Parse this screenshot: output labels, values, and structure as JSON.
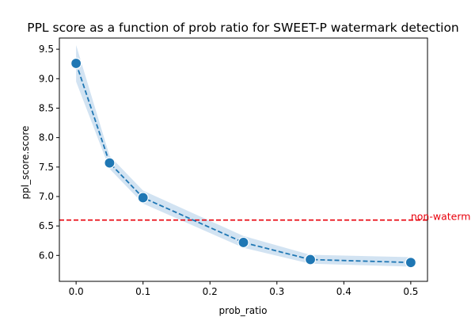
{
  "chart_data": {
    "type": "line",
    "title": "PPL score as a function of prob ratio for SWEET-P watermark detection",
    "xlabel": "prob_ratio",
    "ylabel": "ppl_score.score",
    "xlim": [
      -0.025,
      0.525
    ],
    "ylim": [
      5.56,
      9.69
    ],
    "xticks": [
      0.0,
      0.1,
      0.2,
      0.3,
      0.4,
      0.5
    ],
    "xtick_labels": [
      "0.0",
      "0.1",
      "0.2",
      "0.3",
      "0.4",
      "0.5"
    ],
    "yticks": [
      6.0,
      6.5,
      7.0,
      7.5,
      8.0,
      8.5,
      9.0,
      9.5
    ],
    "ytick_labels": [
      "6.0",
      "6.5",
      "7.0",
      "7.5",
      "8.0",
      "8.5",
      "9.0",
      "9.5"
    ],
    "grid": false,
    "series": [
      {
        "color": "#1f77b4",
        "line_style": "dashed",
        "marker": "circle",
        "band_color": "#a6c8e6",
        "points": [
          {
            "x": 0.0,
            "y": 9.26,
            "lo": 8.95,
            "hi": 9.57
          },
          {
            "x": 0.05,
            "y": 7.57,
            "lo": 7.47,
            "hi": 7.69
          },
          {
            "x": 0.1,
            "y": 6.98,
            "lo": 6.88,
            "hi": 7.1
          },
          {
            "x": 0.25,
            "y": 6.22,
            "lo": 6.13,
            "hi": 6.33
          },
          {
            "x": 0.35,
            "y": 5.93,
            "lo": 5.86,
            "hi": 6.01
          },
          {
            "x": 0.5,
            "y": 5.88,
            "lo": 5.81,
            "hi": 5.97
          }
        ]
      }
    ],
    "reference_line": {
      "y": 6.6,
      "color": "#e8000b",
      "line_style": "dashed",
      "label": "non-waterm"
    }
  }
}
